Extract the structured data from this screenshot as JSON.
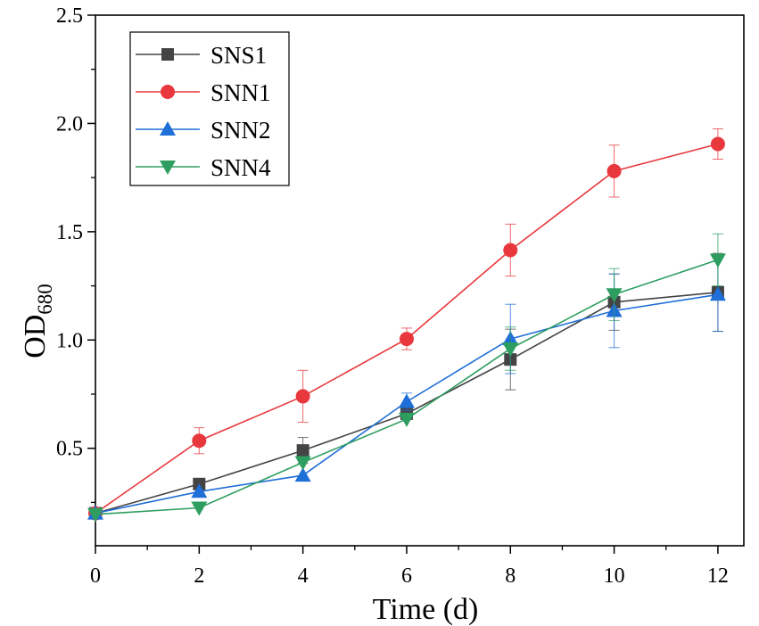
{
  "chart_data": {
    "type": "line",
    "title": "",
    "xlabel": "Time (d)",
    "ylabel": {
      "main": "OD",
      "sub": "680"
    },
    "xlim": [
      0,
      12.5
    ],
    "ylim": [
      0.05,
      2.5
    ],
    "x_ticks": [
      0,
      2,
      4,
      6,
      8,
      10,
      12
    ],
    "y_ticks": [
      0.5,
      1.0,
      1.5,
      2.0,
      2.5
    ],
    "x_tick_labels": [
      "0",
      "2",
      "4",
      "6",
      "8",
      "10",
      "12"
    ],
    "y_tick_labels": [
      "0.5",
      "1.0",
      "1.5",
      "2.0",
      "2.5"
    ],
    "legend_position": "top-left",
    "grid": false,
    "x": [
      0,
      2,
      4,
      6,
      8,
      10,
      12
    ],
    "series": [
      {
        "name": "SNS1",
        "color": "#444444",
        "marker": "square",
        "values": [
          0.2,
          0.335,
          0.49,
          0.66,
          0.91,
          1.175,
          1.22
        ],
        "errors": [
          0.0,
          0.0,
          0.06,
          0.0,
          0.14,
          0.13,
          0.18
        ]
      },
      {
        "name": "SNN1",
        "color": "#e8383d",
        "marker": "circle",
        "values": [
          0.2,
          0.535,
          0.74,
          1.005,
          1.415,
          1.78,
          1.905
        ],
        "errors": [
          0.0,
          0.06,
          0.12,
          0.05,
          0.12,
          0.12,
          0.07
        ]
      },
      {
        "name": "SNN2",
        "color": "#1f6fd8",
        "marker": "triangle-up",
        "values": [
          0.2,
          0.3,
          0.375,
          0.715,
          1.005,
          1.135,
          1.21
        ],
        "errors": [
          0.0,
          0.0,
          0.0,
          0.04,
          0.16,
          0.17,
          0.17
        ]
      },
      {
        "name": "SNN4",
        "color": "#2e9e60",
        "marker": "triangle-down",
        "values": [
          0.195,
          0.225,
          0.435,
          0.635,
          0.96,
          1.21,
          1.37
        ],
        "errors": [
          0.0,
          0.0,
          0.0,
          0.0,
          0.1,
          0.12,
          0.12
        ]
      }
    ]
  }
}
